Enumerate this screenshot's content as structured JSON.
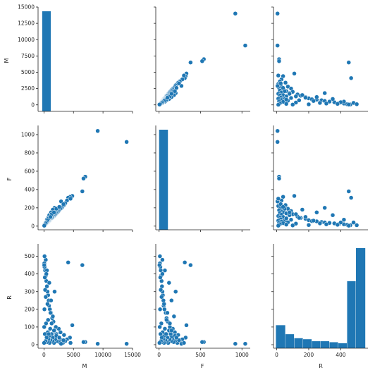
{
  "chart_data": {
    "type": "scatter",
    "variables": [
      "M",
      "F",
      "R"
    ],
    "color": "#1f77b4",
    "axes": {
      "M": {
        "range": [
          -1000,
          15000
        ],
        "ticks": [
          0,
          5000,
          10000,
          15000
        ],
        "ticks_row": [
          0,
          2500,
          5000,
          7500,
          10000,
          12500,
          15000
        ]
      },
      "F": {
        "range": [
          -40,
          1100
        ],
        "ticks": [
          0,
          500,
          1000
        ],
        "ticks_row": [
          0,
          200,
          400,
          600,
          800,
          1000
        ]
      },
      "R": {
        "range": [
          -20,
          570
        ],
        "ticks": [
          0,
          200,
          400
        ],
        "ticks_row": [
          0,
          100,
          200,
          300,
          400,
          500
        ]
      }
    },
    "tick_labels": {
      "M_x": [
        "0",
        "5000",
        "10000",
        "15000"
      ],
      "F_x": [
        "0",
        "500",
        "1000"
      ],
      "R_x": [
        "0",
        "200",
        "400"
      ],
      "M_y": [
        "0",
        "2500",
        "5000",
        "7500",
        "10000",
        "12500",
        "15000"
      ],
      "F_y": [
        "0",
        "200",
        "400",
        "600",
        "800",
        "1000"
      ],
      "R_y": [
        "0",
        "100",
        "200",
        "300",
        "400",
        "500"
      ]
    },
    "xlabels": [
      "M",
      "F",
      "R"
    ],
    "ylabels": [
      "M",
      "F",
      "R"
    ],
    "histograms": {
      "M": {
        "bins": [
          [
            -300,
            1200,
            1
          ]
        ],
        "relative": true
      },
      "F": {
        "bins": [
          [
            0,
            110,
            1
          ]
        ],
        "relative": true
      },
      "R": {
        "bins": [
          [
            -5,
            55,
            0.23
          ],
          [
            55,
            110,
            0.14
          ],
          [
            110,
            165,
            0.1
          ],
          [
            165,
            220,
            0.09
          ],
          [
            220,
            275,
            0.07
          ],
          [
            275,
            330,
            0.07
          ],
          [
            330,
            385,
            0.06
          ],
          [
            385,
            440,
            0.05
          ],
          [
            440,
            495,
            0.67
          ],
          [
            495,
            555,
            1.0
          ]
        ],
        "relative": true
      }
    },
    "points": {
      "M": [
        14000,
        9100,
        7000,
        6700,
        6500,
        4800,
        4400,
        4100,
        3900,
        3600,
        3400,
        3200,
        3000,
        2800,
        2600,
        2500,
        2400,
        2300,
        2200,
        2100,
        2000,
        1900,
        1800,
        1700,
        1600,
        1500,
        1450,
        1400,
        1300,
        1200,
        1100,
        1050,
        1000,
        950,
        900,
        850,
        800,
        750,
        700,
        650,
        600,
        550,
        500,
        450,
        400,
        350,
        300,
        250,
        200,
        150,
        100,
        80,
        60,
        40,
        20,
        1800,
        1500,
        1200,
        900,
        700,
        500,
        300,
        2900,
        2100,
        1300,
        800,
        600,
        400,
        200,
        100,
        4500,
        3300,
        2600,
        1700,
        1100,
        300,
        150,
        50
      ],
      "F": [
        920,
        1040,
        540,
        520,
        380,
        330,
        320,
        310,
        280,
        250,
        230,
        220,
        200,
        190,
        175,
        165,
        160,
        150,
        145,
        140,
        130,
        125,
        120,
        110,
        105,
        100,
        95,
        90,
        85,
        80,
        75,
        70,
        65,
        60,
        58,
        55,
        52,
        50,
        45,
        42,
        40,
        37,
        35,
        32,
        30,
        27,
        25,
        22,
        20,
        17,
        15,
        12,
        10,
        8,
        5,
        200,
        180,
        150,
        120,
        90,
        70,
        40,
        270,
        190,
        130,
        85,
        60,
        40,
        20,
        10,
        300,
        240,
        210,
        150,
        100,
        30,
        15,
        5
      ],
      "R": [
        5,
        5,
        15,
        15,
        450,
        110,
        40,
        465,
        30,
        20,
        55,
        10,
        25,
        70,
        15,
        90,
        35,
        45,
        20,
        60,
        100,
        30,
        80,
        10,
        130,
        40,
        20,
        150,
        60,
        180,
        25,
        90,
        200,
        10,
        50,
        220,
        250,
        30,
        280,
        70,
        300,
        15,
        330,
        40,
        360,
        120,
        390,
        20,
        420,
        60,
        440,
        200,
        460,
        100,
        10,
        300,
        160,
        250,
        350,
        140,
        420,
        480,
        5,
        50,
        120,
        60,
        230,
        400,
        310,
        500,
        10,
        25,
        40,
        80,
        180,
        270,
        380,
        450
      ]
    }
  }
}
